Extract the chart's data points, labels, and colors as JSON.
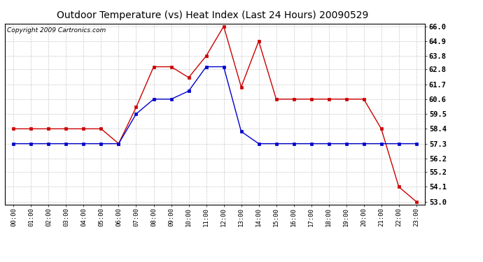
{
  "title": "Outdoor Temperature (vs) Heat Index (Last 24 Hours) 20090529",
  "copyright": "Copyright 2009 Cartronics.com",
  "x_labels": [
    "00:00",
    "01:00",
    "02:00",
    "03:00",
    "04:00",
    "05:00",
    "06:00",
    "07:00",
    "08:00",
    "09:00",
    "10:00",
    "11:00",
    "12:00",
    "13:00",
    "14:00",
    "15:00",
    "16:00",
    "17:00",
    "18:00",
    "19:00",
    "20:00",
    "21:00",
    "22:00",
    "23:00"
  ],
  "red_data": [
    58.4,
    58.4,
    58.4,
    58.4,
    58.4,
    58.4,
    57.3,
    60.0,
    63.0,
    63.0,
    62.2,
    63.8,
    66.0,
    61.5,
    64.9,
    60.6,
    60.6,
    60.6,
    60.6,
    60.6,
    60.6,
    58.4,
    54.1,
    53.0
  ],
  "blue_data": [
    57.3,
    57.3,
    57.3,
    57.3,
    57.3,
    57.3,
    57.3,
    59.5,
    60.6,
    60.6,
    61.2,
    63.0,
    63.0,
    58.2,
    57.3,
    57.3,
    57.3,
    57.3,
    57.3,
    57.3,
    57.3,
    57.3,
    57.3,
    57.3
  ],
  "red_color": "#cc0000",
  "blue_color": "#0000cc",
  "ylim_min": 52.8,
  "ylim_max": 66.2,
  "yticks": [
    53.0,
    54.1,
    55.2,
    56.2,
    57.3,
    58.4,
    59.5,
    60.6,
    61.7,
    62.8,
    63.8,
    64.9,
    66.0
  ],
  "bg_color": "#ffffff",
  "plot_bg": "#ffffff",
  "grid_color": "#bbbbbb",
  "title_fontsize": 10,
  "copyright_fontsize": 6.5
}
